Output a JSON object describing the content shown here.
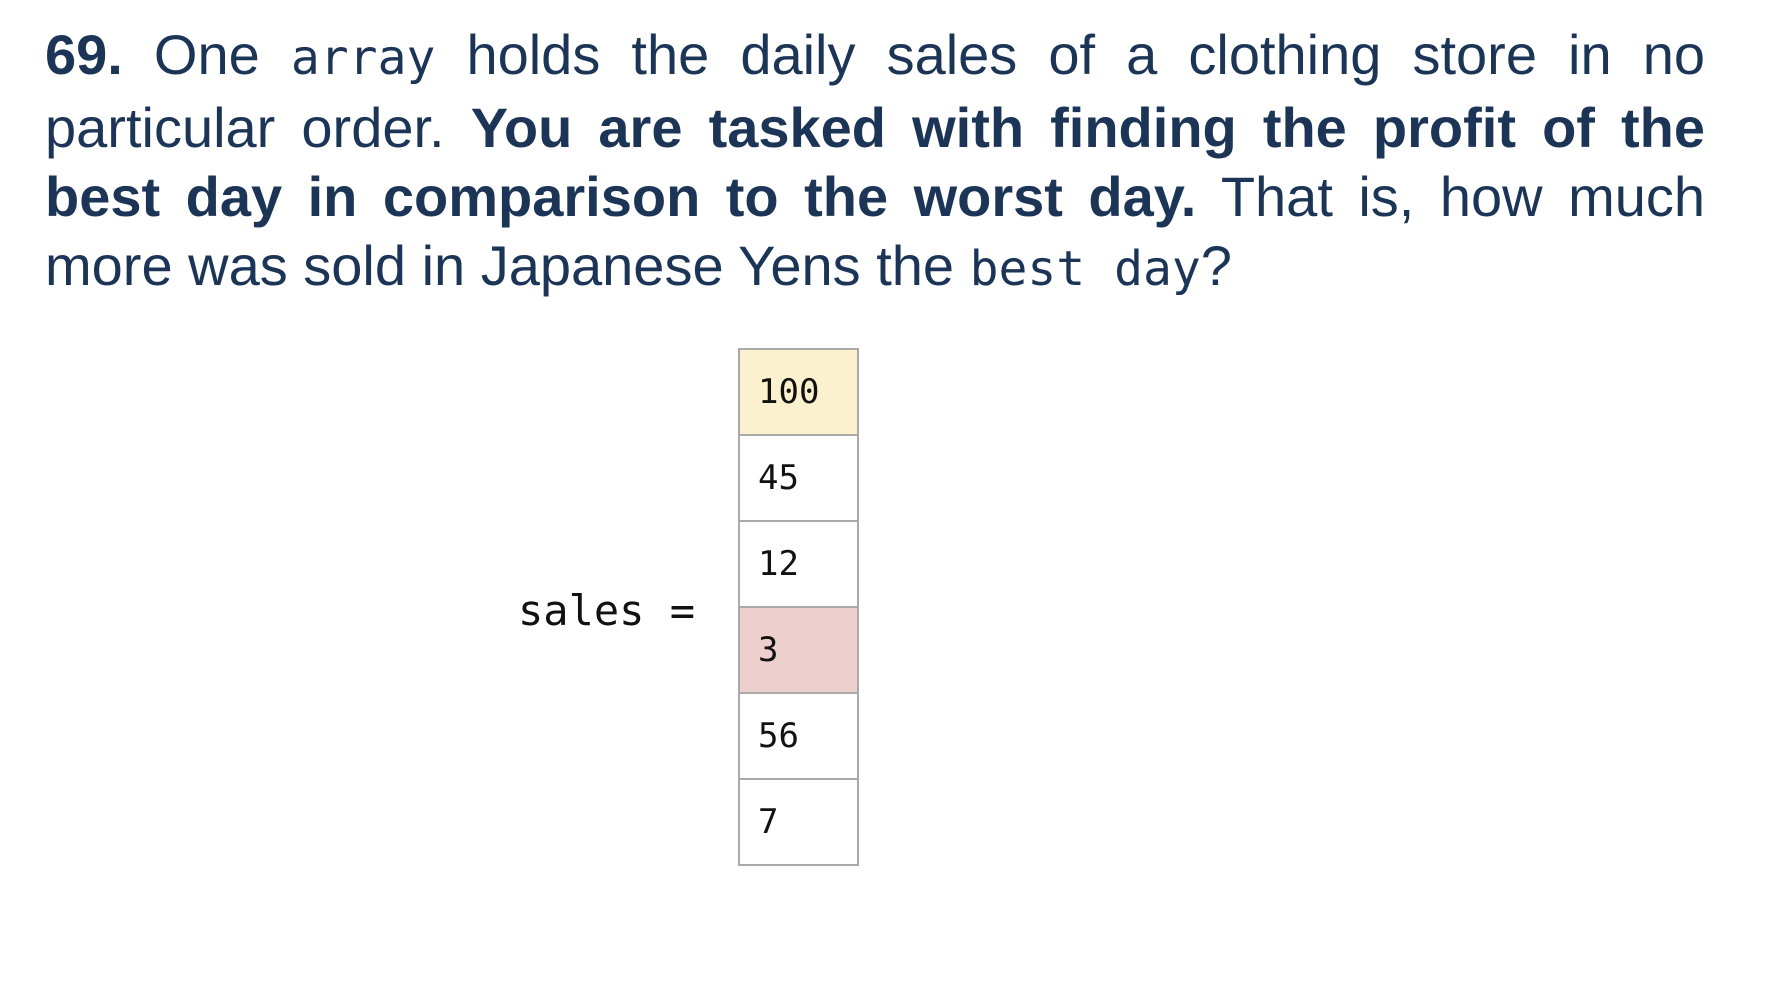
{
  "question": {
    "number": "69.",
    "t1": " One ",
    "code1": "array",
    "t2": " holds the daily sales of a clothing store in no particular order. ",
    "bold": "You are tasked with finding the profit of the best day in comparison to the worst day.",
    "t3": " That is, how much more was sold in Japanese Yens the ",
    "code2": "best day",
    "t4": "?"
  },
  "array": {
    "label": "sales =",
    "cells": [
      {
        "value": "100",
        "highlight": "max"
      },
      {
        "value": "45",
        "highlight": ""
      },
      {
        "value": "12",
        "highlight": ""
      },
      {
        "value": "3",
        "highlight": "min"
      },
      {
        "value": "56",
        "highlight": ""
      },
      {
        "value": "7",
        "highlight": ""
      }
    ]
  },
  "colors": {
    "text": "#1c3557",
    "max_highlight": "#fcf1cf",
    "min_highlight": "#edcfcd",
    "cell_border": "#a9a9a9"
  }
}
